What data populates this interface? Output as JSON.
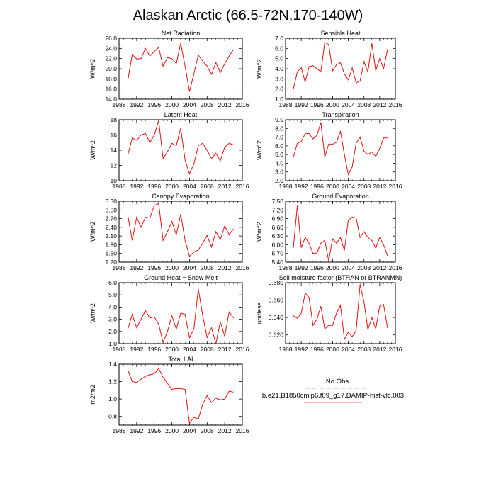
{
  "title": "Alaskan Arctic (66.5-72N,170-140W)",
  "legend": {
    "placement": "bottom-right",
    "entries": [
      {
        "label": "No Obs",
        "color": "#b0b0c8",
        "dashed": true
      },
      {
        "label": "b.e21.B1850cmip6.f09_g17.DAMIP-hist-vlc.003",
        "color": "#ff6666",
        "dashed": false
      }
    ]
  },
  "series_color": "#e01010",
  "chart_data": [
    {
      "type": "line",
      "title": "Net Radiation",
      "ylabel": "W/m^2",
      "xlim": [
        1988,
        2016
      ],
      "ylim": [
        14,
        26
      ],
      "xticks": [
        "1988",
        "1992",
        "1996",
        "2000",
        "2004",
        "2008",
        "2012",
        "2016"
      ],
      "yticks": [
        "14.0",
        "16.0",
        "18.0",
        "20.0",
        "22.0",
        "24.0",
        "26.0"
      ],
      "x": [
        1990,
        1991,
        1992,
        1993,
        1994,
        1995,
        1996,
        1997,
        1998,
        1999,
        2000,
        2001,
        2002,
        2003,
        2004,
        2005,
        2006,
        2007,
        2008,
        2009,
        2010,
        2011,
        2012,
        2013,
        2014
      ],
      "values": [
        17.8,
        22.8,
        21.9,
        22.0,
        24.0,
        22.5,
        23.4,
        24.2,
        20.5,
        22.2,
        22.0,
        21.0,
        25.0,
        20.5,
        15.5,
        19.0,
        22.7,
        21.5,
        20.5,
        18.9,
        21.2,
        19.2,
        21.0,
        22.5,
        23.8
      ]
    },
    {
      "type": "line",
      "title": "Sensible Heat",
      "ylabel": "W/m^2",
      "xlim": [
        1988,
        2016
      ],
      "ylim": [
        1,
        7
      ],
      "xticks": [
        "1988",
        "1992",
        "1996",
        "2000",
        "2004",
        "2008",
        "2012",
        "2016"
      ],
      "yticks": [
        "1.0",
        "2.0",
        "3.0",
        "4.0",
        "5.0",
        "6.0",
        "7.0"
      ],
      "x": [
        1990,
        1991,
        1992,
        1993,
        1994,
        1995,
        1996,
        1997,
        1998,
        1999,
        2000,
        2001,
        2002,
        2003,
        2004,
        2005,
        2006,
        2007,
        2008,
        2009,
        2010,
        2011,
        2012,
        2013,
        2014
      ],
      "values": [
        2.0,
        3.7,
        4.1,
        2.7,
        4.2,
        4.3,
        4.0,
        3.7,
        6.6,
        6.4,
        3.8,
        4.4,
        4.6,
        3.5,
        2.9,
        4.1,
        2.6,
        2.8,
        4.7,
        3.7,
        6.5,
        3.8,
        5.0,
        4.0,
        5.9
      ]
    },
    {
      "type": "line",
      "title": "Latent Heat",
      "ylabel": "W/m^2",
      "xlim": [
        1988,
        2016
      ],
      "ylim": [
        10,
        18
      ],
      "xticks": [
        "1988",
        "1992",
        "1996",
        "2000",
        "2004",
        "2008",
        "2012",
        "2016"
      ],
      "yticks": [
        "10",
        "12",
        "14",
        "16",
        "18"
      ],
      "x": [
        1990,
        1991,
        1992,
        1993,
        1994,
        1995,
        1996,
        1997,
        1998,
        1999,
        2000,
        2001,
        2002,
        2003,
        2004,
        2005,
        2006,
        2007,
        2008,
        2009,
        2010,
        2011,
        2012,
        2013,
        2014
      ],
      "values": [
        13.4,
        15.6,
        15.3,
        16.0,
        16.2,
        15.0,
        16.0,
        17.9,
        12.9,
        13.8,
        14.9,
        14.6,
        16.9,
        12.7,
        10.9,
        12.2,
        14.6,
        14.9,
        14.0,
        12.9,
        13.6,
        12.6,
        14.4,
        14.9,
        14.7
      ]
    },
    {
      "type": "line",
      "title": "Transpiration",
      "ylabel": "W/m^2",
      "xlim": [
        1988,
        2016
      ],
      "ylim": [
        2,
        9
      ],
      "xticks": [
        "1988",
        "1992",
        "1996",
        "2000",
        "2004",
        "2008",
        "2012",
        "2016"
      ],
      "yticks": [
        "2.0",
        "3.0",
        "4.0",
        "5.0",
        "6.0",
        "7.0",
        "8.0",
        "9.0"
      ],
      "x": [
        1990,
        1991,
        1992,
        1993,
        1994,
        1995,
        1996,
        1997,
        1998,
        1999,
        2000,
        2001,
        2002,
        2003,
        2004,
        2005,
        2006,
        2007,
        2008,
        2009,
        2010,
        2011,
        2012,
        2013,
        2014
      ],
      "values": [
        4.7,
        6.3,
        6.5,
        7.4,
        7.4,
        6.8,
        7.2,
        8.7,
        4.7,
        6.2,
        6.2,
        6.4,
        7.7,
        5.0,
        2.7,
        3.6,
        6.3,
        7.0,
        5.4,
        5.0,
        5.3,
        4.8,
        5.7,
        6.9,
        6.9
      ]
    },
    {
      "type": "line",
      "title": "Canopy Evaporation",
      "ylabel": "W/m^2",
      "xlim": [
        1988,
        2016
      ],
      "ylim": [
        1.2,
        3.3
      ],
      "xticks": [
        "1988",
        "1992",
        "1996",
        "2000",
        "2004",
        "2008",
        "2012",
        "2016"
      ],
      "yticks": [
        "1.20",
        "1.50",
        "1.80",
        "2.10",
        "2.40",
        "2.70",
        "3.00",
        "3.30"
      ],
      "x": [
        1990,
        1991,
        1992,
        1993,
        1994,
        1995,
        1996,
        1997,
        1998,
        1999,
        2000,
        2001,
        2002,
        2003,
        2004,
        2005,
        2006,
        2007,
        2008,
        2009,
        2010,
        2011,
        2012,
        2013,
        2014
      ],
      "values": [
        2.8,
        1.95,
        2.75,
        2.4,
        2.75,
        2.72,
        3.15,
        3.22,
        1.95,
        2.25,
        2.6,
        2.15,
        2.85,
        1.95,
        1.4,
        1.55,
        1.62,
        1.85,
        2.12,
        1.72,
        2.25,
        1.98,
        2.45,
        2.15,
        2.35
      ]
    },
    {
      "type": "line",
      "title": "Ground Evaporation",
      "ylabel": "W/m^2",
      "xlim": [
        1988,
        2016
      ],
      "ylim": [
        5.4,
        7.5
      ],
      "xticks": [
        "1988",
        "1992",
        "1996",
        "2000",
        "2004",
        "2008",
        "2012",
        "2016"
      ],
      "yticks": [
        "5.40",
        "5.70",
        "6.00",
        "6.30",
        "6.60",
        "6.90",
        "7.20",
        "7.50"
      ],
      "x": [
        1990,
        1991,
        1992,
        1993,
        1994,
        1995,
        1996,
        1997,
        1998,
        1999,
        2000,
        2001,
        2002,
        2003,
        2004,
        2005,
        2006,
        2007,
        2008,
        2009,
        2010,
        2011,
        2012,
        2013,
        2014
      ],
      "values": [
        5.9,
        7.35,
        5.9,
        6.25,
        6.05,
        5.7,
        5.72,
        6.05,
        6.15,
        5.45,
        6.2,
        6.05,
        6.25,
        5.8,
        6.85,
        6.95,
        6.92,
        6.25,
        6.45,
        6.25,
        6.15,
        5.88,
        6.25,
        6.0,
        5.62
      ]
    },
    {
      "type": "line",
      "title": "Ground Heat + Snow Melt",
      "ylabel": "W/m^2",
      "xlim": [
        1988,
        2016
      ],
      "ylim": [
        1,
        6
      ],
      "xticks": [
        "1988",
        "1992",
        "1996",
        "2000",
        "2004",
        "2008",
        "2012",
        "2016"
      ],
      "yticks": [
        "1.0",
        "2.0",
        "3.0",
        "4.0",
        "5.0",
        "6.0"
      ],
      "x": [
        1990,
        1991,
        1992,
        1993,
        1994,
        1995,
        1996,
        1997,
        1998,
        1999,
        2000,
        2001,
        2002,
        2003,
        2004,
        2005,
        2006,
        2007,
        2008,
        2009,
        2010,
        2011,
        2012,
        2013,
        2014
      ],
      "values": [
        2.2,
        3.4,
        2.3,
        3.0,
        3.7,
        3.1,
        3.2,
        2.6,
        1.1,
        2.0,
        3.3,
        2.2,
        3.5,
        3.4,
        1.5,
        2.2,
        5.5,
        3.3,
        1.5,
        2.3,
        1.0,
        2.8,
        1.6,
        3.6,
        3.1
      ]
    },
    {
      "type": "line",
      "title": "Soil moisture factor (BTRAN or BTRANMN)",
      "ylabel": "unitless",
      "xlim": [
        1988,
        2016
      ],
      "ylim": [
        0.61,
        0.68
      ],
      "xticks": [
        "1988",
        "1992",
        "1996",
        "2000",
        "2004",
        "2008",
        "2012",
        "2016"
      ],
      "yticks": [
        "0.620",
        "0.640",
        "0.660",
        "0.680"
      ],
      "x": [
        1990,
        1991,
        1992,
        1993,
        1994,
        1995,
        1996,
        1997,
        1998,
        1999,
        2000,
        2001,
        2002,
        2003,
        2004,
        2005,
        2006,
        2007,
        2008,
        2009,
        2010,
        2011,
        2012,
        2013,
        2014
      ],
      "values": [
        0.642,
        0.639,
        0.645,
        0.668,
        0.663,
        0.631,
        0.638,
        0.653,
        0.627,
        0.631,
        0.631,
        0.645,
        0.654,
        0.615,
        0.623,
        0.618,
        0.625,
        0.678,
        0.658,
        0.626,
        0.64,
        0.627,
        0.653,
        0.655,
        0.628
      ]
    },
    {
      "type": "line",
      "title": "Total LAI",
      "ylabel": "m2/m2",
      "xlim": [
        1988,
        2016
      ],
      "ylim": [
        0.7,
        1.4
      ],
      "xticks": [
        "1988",
        "1992",
        "1996",
        "2000",
        "2004",
        "2008",
        "2012",
        "2016"
      ],
      "yticks": [
        "0.8",
        "1.0",
        "1.2",
        "1.4"
      ],
      "x": [
        1990,
        1991,
        1992,
        1993,
        1994,
        1995,
        1996,
        1997,
        1998,
        1999,
        2000,
        2001,
        2002,
        2003,
        2004,
        2005,
        2006,
        2007,
        2008,
        2009,
        2010,
        2011,
        2012,
        2013,
        2014
      ],
      "values": [
        1.33,
        1.2,
        1.19,
        1.23,
        1.26,
        1.28,
        1.29,
        1.35,
        1.25,
        1.18,
        1.11,
        1.12,
        1.12,
        1.11,
        0.72,
        0.79,
        0.77,
        0.94,
        1.04,
        0.96,
        1.01,
        0.99,
        1.0,
        1.09,
        1.08
      ]
    }
  ]
}
